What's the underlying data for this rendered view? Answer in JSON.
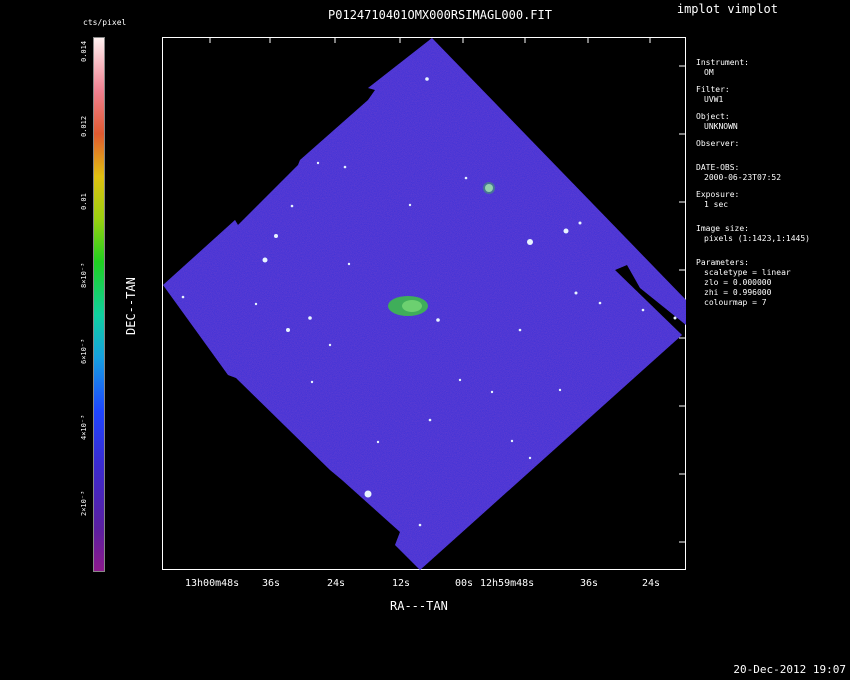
{
  "app_title": "implot vimplot",
  "plot_title": "P0124710401OMX000RSIMAGL000.FIT",
  "colorbar": {
    "unit": "cts/pixel",
    "ticks": [
      "0.014",
      "0.012",
      "0.01",
      "8×10⁻³",
      "6×10⁻³",
      "4×10⁻³",
      "2×10⁻³"
    ]
  },
  "axes": {
    "xlabel": "RA---TAN",
    "ylabel": "DEC--TAN",
    "x_ticks": [
      "13h00m48s",
      "36s",
      "24s",
      "12s",
      "00s",
      "12h59m48s",
      "36s",
      "24s"
    ]
  },
  "info": {
    "instrument_label": "Instrument:",
    "instrument_value": "OM",
    "filter_label": "Filter:",
    "filter_value": "UVW1",
    "object_label": "Object:",
    "object_value": "UNKNOWN",
    "observer_label": "Observer:",
    "dateobs_label": "DATE-OBS:",
    "dateobs_value": "2000-06-23T07:52",
    "exposure_label": "Exposure:",
    "exposure_value": "1 sec",
    "imagesize_label": "Image size:",
    "imagesize_value": "pixels (1:1423,1:1445)",
    "params_label": "Parameters:",
    "scaletype": "scaletype = linear",
    "zlo": "zlo = 0.000000",
    "zhi": "zhi = 0.996000",
    "colourmap": "colourmap = 7"
  },
  "footer_date": "20-Dec-2012 19:07",
  "colors": {
    "field": "#2a2bd8",
    "galaxy": "#2fae5f",
    "frame": "#ffffff"
  }
}
